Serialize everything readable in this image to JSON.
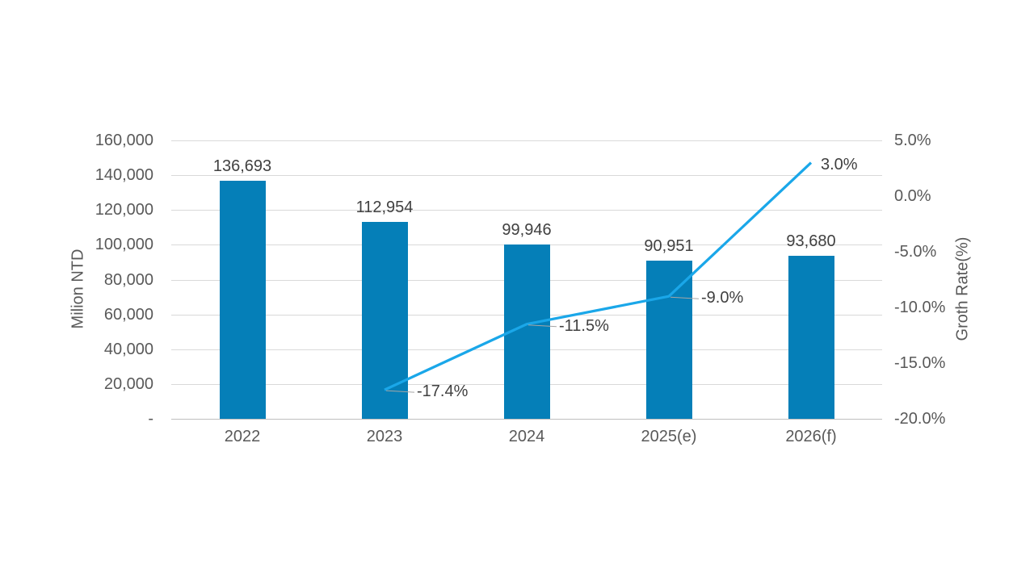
{
  "chart_data": {
    "type": "combo-bar-line",
    "title": "",
    "legend": "none",
    "grid": true,
    "background": "#FFFFFF",
    "categories": [
      "2022",
      "2023",
      "2024",
      "2025(e)",
      "2026(f)"
    ],
    "series": [
      {
        "type": "bar",
        "axis": "left",
        "color": "#057FB8",
        "values": [
          136693,
          112954,
          99946,
          90951,
          93680
        ],
        "labels": [
          "136,693",
          "112,954",
          "99,946",
          "90,951",
          "93,680"
        ]
      },
      {
        "type": "line",
        "axis": "right",
        "color": "#1AA7E9",
        "values": [
          null,
          -17.4,
          -11.5,
          -9.0,
          3.0
        ],
        "labels": [
          null,
          "-17.4%",
          "-11.5%",
          "-9.0%",
          "3.0%"
        ]
      }
    ],
    "left_axis": {
      "title": "Milion NTD",
      "min": 0,
      "max": 160000,
      "step": 20000,
      "tick_labels": [
        "-",
        "20,000",
        "40,000",
        "60,000",
        "80,000",
        "100,000",
        "120,000",
        "140,000",
        "160,000"
      ]
    },
    "right_axis": {
      "title": "Groth Rate(%)",
      "min": -20,
      "max": 5,
      "step": 5,
      "tick_labels": [
        "-20.0%",
        "-15.0%",
        "-10.0%",
        "-5.0%",
        "0.0%",
        "5.0%"
      ]
    },
    "styles": {
      "gridline_color": "#D9D9D9",
      "axis_line_color": "#BFBFBF",
      "tick_label_color": "#595959",
      "data_label_color": "#404040",
      "leader_line_color": "#A6A6A6"
    }
  }
}
